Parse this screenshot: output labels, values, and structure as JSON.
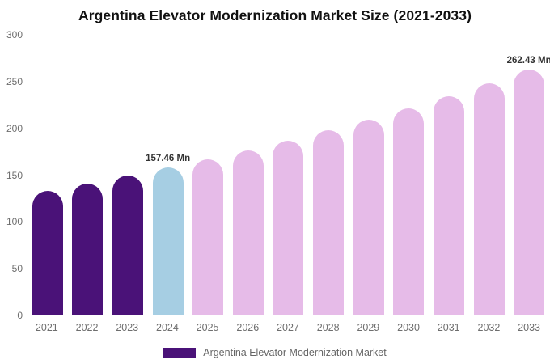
{
  "chart_data": {
    "type": "bar",
    "title": "Argentina Elevator Modernization Market Size (2021-2033)",
    "xlabel": "",
    "ylabel": "",
    "categories": [
      "2021",
      "2022",
      "2023",
      "2024",
      "2025",
      "2026",
      "2027",
      "2028",
      "2029",
      "2030",
      "2031",
      "2032",
      "2033"
    ],
    "values": [
      132.8,
      140.6,
      148.8,
      157.46,
      166.7,
      176.4,
      186.7,
      197.6,
      209.2,
      221.4,
      234.3,
      248.0,
      262.43
    ],
    "bar_colors": [
      "#4A1278",
      "#4A1278",
      "#4A1278",
      "#A6CEE3",
      "#E6BBE8",
      "#E6BBE8",
      "#E6BBE8",
      "#E6BBE8",
      "#E6BBE8",
      "#E6BBE8",
      "#E6BBE8",
      "#E6BBE8",
      "#E6BBE8"
    ],
    "annotations": [
      {
        "category": "2024",
        "text": "157.46 Mn"
      },
      {
        "category": "2033",
        "text": "262.43 Mn"
      }
    ],
    "ylim": [
      0,
      300
    ],
    "yticks": [
      0,
      50,
      100,
      150,
      200,
      250,
      300
    ],
    "grid": false,
    "legend_position": "bottom"
  },
  "legend": {
    "label": "Argentina Elevator Modernization Market",
    "swatch_color": "#4A1278"
  },
  "colors": {
    "historical_bar": "#4A1278",
    "current_year_bar": "#A6CEE3",
    "forecast_bar": "#E6BBE8",
    "axis_line": "#D9D9D9",
    "axis_text": "#6E6E6E",
    "data_label_text": "#333333",
    "title_text": "#111111",
    "background": "#FFFFFF"
  }
}
